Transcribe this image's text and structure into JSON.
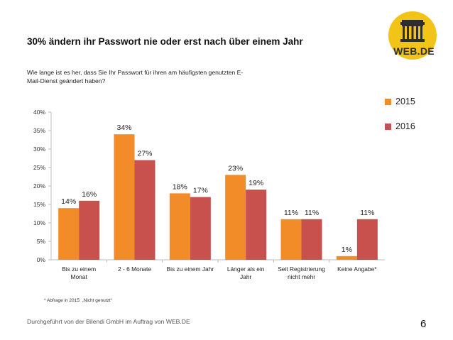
{
  "slide": {
    "title": "30% ändern ihr Passwort nie oder erst nach über einem Jahr",
    "question_lines": [
      "Wie lange ist es her, dass Sie Ihr Passwort für ihren am häufigsten genutzten E-",
      "Mail-Dienst geändert haben?"
    ],
    "footnote": "* Abfrage in 2015: „Nicht genutzt“",
    "footer": "Durchgeführt von der Bilendi GmbH im Auftrag von WEB.DE",
    "page_number": "6",
    "logo_text": "WEB.DE"
  },
  "colors": {
    "series_2015": "#f28c28",
    "series_2016": "#c8504d",
    "logo_yellow": "#f2c418",
    "logo_dark": "#2e2e2e"
  },
  "chart_data": {
    "type": "bar",
    "categories": [
      [
        "Bis zu einem",
        "Monat"
      ],
      [
        "2 - 6 Monate"
      ],
      [
        "Bis zu einem Jahr"
      ],
      [
        "Länger als ein",
        "Jahr"
      ],
      [
        "Seit Registrierung",
        "nicht mehr"
      ],
      [
        "Keine Angabe*"
      ]
    ],
    "series": [
      {
        "name": "2015",
        "color": "#f28c28",
        "values": [
          14,
          34,
          18,
          23,
          11,
          1
        ],
        "labels": [
          "14%",
          "34%",
          "18%",
          "23%",
          "11%",
          "1%"
        ]
      },
      {
        "name": "2016",
        "color": "#c8504d",
        "values": [
          16,
          27,
          17,
          19,
          11,
          11
        ],
        "labels": [
          "16%",
          "27%",
          "17%",
          "19%",
          "11%",
          "11%"
        ]
      }
    ],
    "ylim": [
      0,
      40
    ],
    "yticks": [
      0,
      5,
      10,
      15,
      20,
      25,
      30,
      35,
      40
    ],
    "ytick_labels": [
      "0%",
      "5%",
      "10%",
      "15%",
      "20%",
      "25%",
      "30%",
      "35%",
      "40%"
    ],
    "legend_position": "right",
    "grid": false
  }
}
